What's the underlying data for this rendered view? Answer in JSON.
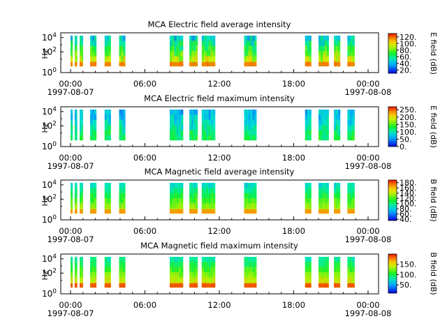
{
  "figure": {
    "x_ticks": [
      "00:00",
      "06:00",
      "12:00",
      "18:00",
      "00:00"
    ],
    "x_start_date": "1997-08-07",
    "x_end_date": "1997-08-08",
    "y_label": "Hz"
  },
  "chart_data": [
    {
      "type": "heatmap",
      "title": "MCA  Electric field average intensity",
      "ylabel": "Hz",
      "yscale": "log",
      "y_ticks": [
        "10^0",
        "10^2",
        "10^4"
      ],
      "xlim": [
        "1997-08-07 00:00",
        "1997-08-08 00:00"
      ],
      "colorbar_label": "E field (dB)",
      "colorbar_ticks": [
        "120.",
        "100.",
        "80.",
        "60.",
        "40.",
        "20."
      ],
      "colorbar_range": [
        10,
        130
      ]
    },
    {
      "type": "heatmap",
      "title": "MCA  Electric field maximum intensity",
      "ylabel": "Hz",
      "yscale": "log",
      "y_ticks": [
        "10^0",
        "10^2",
        "10^4"
      ],
      "xlim": [
        "1997-08-07 00:00",
        "1997-08-08 00:00"
      ],
      "colorbar_label": "E field (dB)",
      "colorbar_ticks": [
        "250.",
        "200.",
        "150.",
        "100.",
        "50.",
        "0."
      ],
      "colorbar_range": [
        0,
        270
      ]
    },
    {
      "type": "heatmap",
      "title": "MCA  Magnetic field average intensity",
      "ylabel": "Hz",
      "yscale": "log",
      "y_ticks": [
        "10^0",
        "10^2",
        "10^4"
      ],
      "xlim": [
        "1997-08-07 00:00",
        "1997-08-08 00:00"
      ],
      "colorbar_label": "B field (dB)",
      "colorbar_ticks": [
        "180.",
        "160.",
        "140.",
        "120.",
        "100.",
        "80.",
        "60.",
        "40."
      ],
      "colorbar_range": [
        35,
        190
      ]
    },
    {
      "type": "heatmap",
      "title": "MCA  Magnetic field maximum intensity",
      "ylabel": "Hz",
      "yscale": "log",
      "y_ticks": [
        "10^0",
        "10^2",
        "10^4"
      ],
      "xlim": [
        "1997-08-07 00:00",
        "1997-08-08 00:00"
      ],
      "colorbar_label": "B field (dB)",
      "colorbar_ticks": [
        "150.",
        "100.",
        "50."
      ],
      "colorbar_range": [
        10,
        200
      ]
    }
  ],
  "data_intervals_utc": [
    [
      "00:00",
      "00:05"
    ],
    [
      "00:20",
      "00:32"
    ],
    [
      "00:44",
      "01:00"
    ],
    [
      "01:35",
      "02:05"
    ],
    [
      "02:45",
      "03:15"
    ],
    [
      "03:55",
      "04:25"
    ],
    [
      "08:00",
      "09:05"
    ],
    [
      "09:35",
      "10:15"
    ],
    [
      "10:35",
      "11:40"
    ],
    [
      "14:00",
      "15:00"
    ],
    [
      "18:55",
      "19:25"
    ],
    [
      "20:00",
      "20:50"
    ],
    [
      "21:15",
      "21:45"
    ],
    [
      "22:20",
      "22:55"
    ]
  ]
}
